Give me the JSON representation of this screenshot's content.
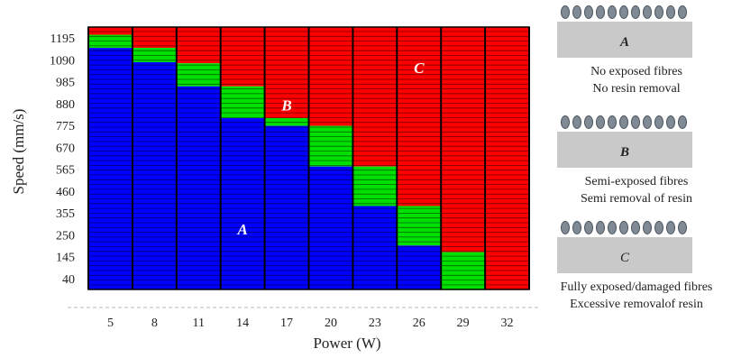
{
  "chart_data": {
    "type": "heatmap",
    "xlabel": "Power (W)",
    "ylabel": "Speed (mm/s)",
    "x_ticks": [
      "5",
      "8",
      "11",
      "14",
      "17",
      "20",
      "23",
      "26",
      "29",
      "32"
    ],
    "y_ticks": [
      "40",
      "145",
      "250",
      "355",
      "460",
      "565",
      "670",
      "775",
      "880",
      "985",
      "1090",
      "1195"
    ],
    "speed_range": [
      40,
      1235
    ],
    "categories": [
      "A",
      "B",
      "C"
    ],
    "colors": {
      "A": "#0000ff",
      "B": "#00e000",
      "C": "#ff0000"
    },
    "region_labels": [
      {
        "text": "A",
        "power": 14,
        "speed": 315
      },
      {
        "text": "B",
        "power": 17,
        "speed": 880
      },
      {
        "text": "C",
        "power": 26,
        "speed": 1050
      }
    ],
    "columns": [
      {
        "power": 5,
        "a_max": 1140,
        "b_max": 1200
      },
      {
        "power": 8,
        "a_max": 1075,
        "b_max": 1140
      },
      {
        "power": 11,
        "a_max": 965,
        "b_max": 1070
      },
      {
        "power": 14,
        "a_max": 820,
        "b_max": 965
      },
      {
        "power": 17,
        "a_max": 785,
        "b_max": 820
      },
      {
        "power": 20,
        "a_max": 600,
        "b_max": 785
      },
      {
        "power": 23,
        "a_max": 420,
        "b_max": 600
      },
      {
        "power": 26,
        "a_max": 240,
        "b_max": 420
      },
      {
        "power": 29,
        "a_max": 40,
        "b_max": 210
      },
      {
        "power": 32,
        "a_max": 40,
        "b_max": 40
      }
    ]
  },
  "legend": [
    {
      "tag": "A",
      "lines": [
        "No exposed fibres",
        "No resin removal"
      ]
    },
    {
      "tag": "B",
      "lines": [
        "Semi-exposed fibres",
        "Semi removal of resin"
      ]
    },
    {
      "tag": "C",
      "lines": [
        "Fully exposed/damaged fibres",
        "Excessive removalof resin"
      ]
    }
  ]
}
